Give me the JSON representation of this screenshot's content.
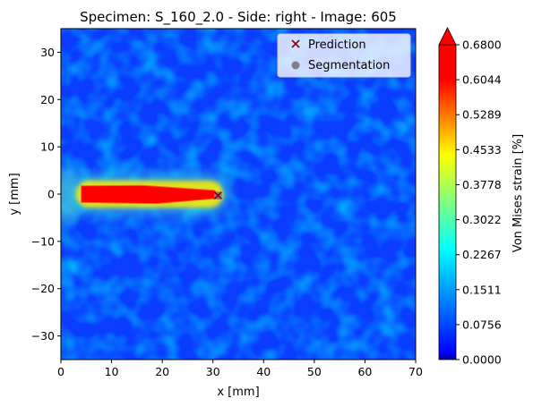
{
  "chart_data": {
    "type": "heatmap",
    "title": "Specimen: S_160_2.0 - Side: right - Image: 605",
    "xlabel": "x [mm]",
    "ylabel": "y [mm]",
    "xlim": [
      0,
      70
    ],
    "ylim": [
      -35,
      35
    ],
    "x_ticks": [
      0,
      10,
      20,
      30,
      40,
      50,
      60,
      70
    ],
    "y_ticks": [
      -30,
      -20,
      -10,
      0,
      10,
      20,
      30
    ],
    "colorbar": {
      "label": "Von Mises strain [%]",
      "colormap": "jet",
      "range": [
        0.0,
        0.68
      ],
      "ticks": [
        "0.0000",
        "0.0756",
        "0.1511",
        "0.2267",
        "0.3022",
        "0.3778",
        "0.4533",
        "0.5289",
        "0.6044",
        "0.6800"
      ],
      "extend": "max"
    },
    "background_strain_estimate": 0.08,
    "crack_band": {
      "description_value": "high strain ≥ 0.68",
      "x_start": 4,
      "x_end": 31,
      "y_center": 0,
      "half_width": 1.6
    },
    "markers": [
      {
        "name": "Prediction",
        "symbol": "x",
        "color": "#8b0000",
        "x": 31.0,
        "y": -0.3
      },
      {
        "name": "Segmentation",
        "symbol": "o",
        "color": "#808080",
        "x": 31.0,
        "y": -0.3
      }
    ],
    "legend": {
      "position": "top-right",
      "entries": [
        "Prediction",
        "Segmentation"
      ]
    }
  }
}
